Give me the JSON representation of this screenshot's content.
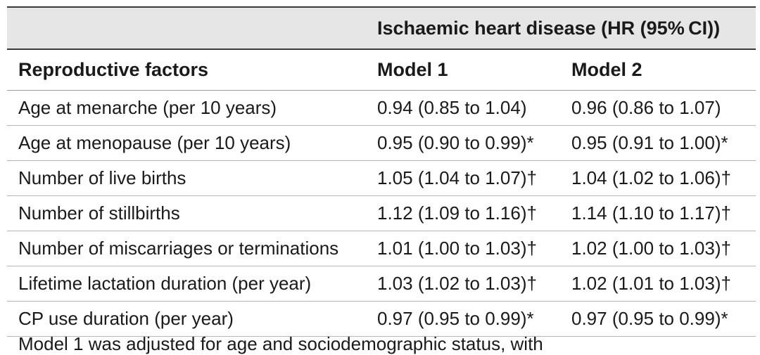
{
  "table": {
    "group_header": "Ischaemic heart disease (HR (95% CI))",
    "columns": [
      "Reproductive factors",
      "Model 1",
      "Model 2"
    ],
    "rows": [
      {
        "factor": "Age at menarche (per 10 years)",
        "model1": "0.94 (0.85 to 1.04)",
        "model2": "0.96 (0.86 to 1.07)"
      },
      {
        "factor": "Age at menopause (per 10 years)",
        "model1": "0.95 (0.90 to 0.99)*",
        "model2": "0.95 (0.91 to 1.00)*"
      },
      {
        "factor": "Number of live births",
        "model1": "1.05 (1.04 to 1.07)†",
        "model2": "1.04 (1.02 to 1.06)†"
      },
      {
        "factor": "Number of stillbirths",
        "model1": "1.12 (1.09 to 1.16)†",
        "model2": "1.14 (1.10 to 1.17)†"
      },
      {
        "factor": "Number of miscarriages or terminations",
        "model1": "1.01 (1.00 to 1.03)†",
        "model2": "1.02 (1.00 to 1.03)†"
      },
      {
        "factor": "Lifetime lactation duration (per year)",
        "model1": "1.03 (1.02 to 1.03)†",
        "model2": "1.02 (1.01 to 1.03)†"
      },
      {
        "factor": "CP use duration (per year)",
        "model1": "0.97 (0.95 to 0.99)*",
        "model2": "0.97 (0.95 to 0.99)*"
      }
    ]
  },
  "footnote": "Model 1 was adjusted for age and sociodemographic status, with"
}
